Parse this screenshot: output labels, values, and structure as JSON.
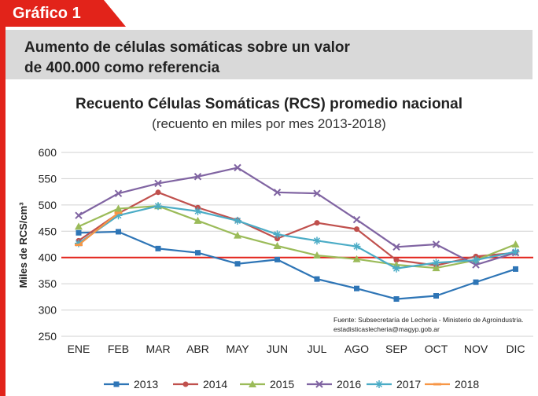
{
  "badge": "Gráfico 1",
  "header": {
    "line1": "Aumento de células somáticas sobre un valor",
    "line2": "de 400.000 como referencia"
  },
  "source": {
    "line1": "Fuente: Subsecretaría de Lechería - Ministerio de Agroindustria.",
    "line2": "estadisticaslecheria@magyp.gob.ar"
  },
  "colors": {
    "accent": "#e2231a",
    "header_bg": "#d9d9d9",
    "reference_line": "#e2231a"
  },
  "chart_data": {
    "type": "line",
    "title": "Recuento Células Somáticas (RCS) promedio nacional",
    "subtitle": "(recuento en miles por mes 2013-2018)",
    "ylabel": "Miles de RCS/cm³",
    "xlabel": "",
    "categories": [
      "ENE",
      "FEB",
      "MAR",
      "ABR",
      "MAY",
      "JUN",
      "JUL",
      "AGO",
      "SEP",
      "OCT",
      "NOV",
      "DIC"
    ],
    "ylim": [
      250,
      600
    ],
    "yticks": [
      250,
      300,
      350,
      400,
      450,
      500,
      550,
      600
    ],
    "grid": true,
    "legend_position": "bottom",
    "reference_line": {
      "value": 400,
      "color": "#e2231a"
    },
    "series": [
      {
        "name": "2013",
        "color": "#2e75b6",
        "values": [
          447,
          449,
          417,
          409,
          388,
          396,
          359,
          341,
          321,
          327,
          353,
          378
        ]
      },
      {
        "name": "2014",
        "color": "#c0504d",
        "values": [
          432,
          484,
          524,
          495,
          471,
          436,
          466,
          454,
          395,
          385,
          402,
          409
        ]
      },
      {
        "name": "2015",
        "color": "#9bbb59",
        "values": [
          459,
          493,
          498,
          470,
          442,
          422,
          404,
          397,
          386,
          380,
          395,
          425
        ]
      },
      {
        "name": "2016",
        "color": "#8064a2",
        "values": [
          480,
          522,
          541,
          554,
          571,
          524,
          522,
          472,
          420,
          425,
          386,
          409
        ]
      },
      {
        "name": "2017",
        "color": "#4bacc6",
        "values": [
          427,
          480,
          498,
          488,
          470,
          444,
          432,
          421,
          379,
          390,
          395,
          411
        ]
      },
      {
        "name": "2018",
        "color": "#f79646",
        "values": [
          424,
          485,
          null,
          null,
          null,
          null,
          null,
          null,
          null,
          null,
          null,
          null
        ]
      }
    ]
  }
}
